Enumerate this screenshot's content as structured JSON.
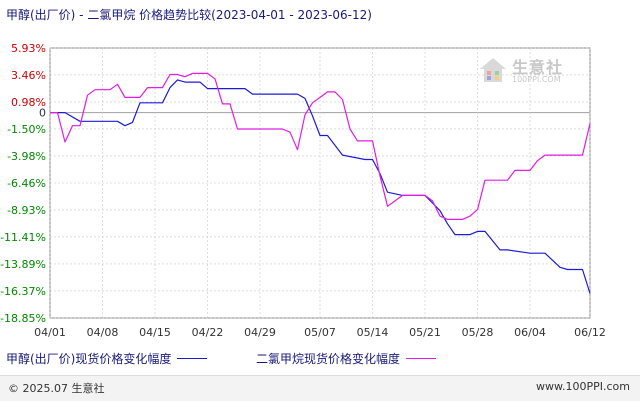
{
  "title": "甲醇(出厂价) - 二氯甲烷 价格趋势比较(2023-04-01 - 2023-06-12)",
  "watermark": {
    "name": "生意社",
    "url": "100PPI.COM"
  },
  "legend": {
    "series1": "甲醇(出厂价)现货价格变化幅度",
    "series2": "二氯甲烷现货价格变化幅度"
  },
  "footer": {
    "left": "© 2025.07 生意社",
    "right": "www.100PPI.com"
  },
  "colors": {
    "series1": "#1c1cd6",
    "series2": "#e01ee0",
    "tick_red": "#cc0000",
    "tick_green": "#008800",
    "grid": "#c8c8c8",
    "zero_line": "#a0a0a0"
  },
  "chart_data": {
    "type": "line",
    "ylim": [
      -18.85,
      5.93
    ],
    "y_ticks": [
      "5.93%",
      "3.46%",
      "0.98%",
      "0",
      "-1.50%",
      "-3.98%",
      "-6.46%",
      "-8.93%",
      "-11.41%",
      "-13.89%",
      "-16.37%",
      "-18.85%"
    ],
    "y_tick_values": [
      5.93,
      3.46,
      0.98,
      0,
      -1.5,
      -3.98,
      -6.46,
      -8.93,
      -11.41,
      -13.89,
      -16.37,
      -18.85
    ],
    "x_ticks": [
      "04/01",
      "04/08",
      "04/15",
      "04/22",
      "04/29",
      "05/07",
      "05/14",
      "05/21",
      "05/28",
      "06/04",
      "06/12"
    ],
    "series": [
      {
        "name": "甲醇(出厂价)现货价格变化幅度",
        "points": [
          [
            "04/01",
            0
          ],
          [
            "04/03",
            0
          ],
          [
            "04/05",
            -0.8
          ],
          [
            "04/08",
            -0.8
          ],
          [
            "04/10",
            -0.8
          ],
          [
            "04/11",
            -1.2
          ],
          [
            "04/12",
            -0.9
          ],
          [
            "04/13",
            0.9
          ],
          [
            "04/14",
            0.9
          ],
          [
            "04/16",
            0.9
          ],
          [
            "04/17",
            2.3
          ],
          [
            "04/18",
            3.0
          ],
          [
            "04/19",
            2.8
          ],
          [
            "04/21",
            2.8
          ],
          [
            "04/22",
            2.2
          ],
          [
            "04/24",
            2.2
          ],
          [
            "04/27",
            2.2
          ],
          [
            "04/28",
            1.7
          ],
          [
            "05/04",
            1.7
          ],
          [
            "05/05",
            1.3
          ],
          [
            "05/06",
            -0.3
          ],
          [
            "05/07",
            -2.1
          ],
          [
            "05/08",
            -2.1
          ],
          [
            "05/10",
            -3.9
          ],
          [
            "05/13",
            -4.3
          ],
          [
            "05/14",
            -4.3
          ],
          [
            "05/15",
            -5.6
          ],
          [
            "05/16",
            -7.3
          ],
          [
            "05/18",
            -7.6
          ],
          [
            "05/21",
            -7.6
          ],
          [
            "05/22",
            -8.3
          ],
          [
            "05/23",
            -9.0
          ],
          [
            "05/24",
            -10.2
          ],
          [
            "05/25",
            -11.2
          ],
          [
            "05/27",
            -11.2
          ],
          [
            "05/28",
            -10.9
          ],
          [
            "05/29",
            -10.9
          ],
          [
            "05/31",
            -12.6
          ],
          [
            "06/01",
            -12.6
          ],
          [
            "06/04",
            -12.9
          ],
          [
            "06/05",
            -12.9
          ],
          [
            "06/06",
            -12.9
          ],
          [
            "06/08",
            -14.2
          ],
          [
            "06/09",
            -14.4
          ],
          [
            "06/11",
            -14.4
          ],
          [
            "06/12",
            -16.6
          ]
        ]
      },
      {
        "name": "二氯甲烷现货价格变化幅度",
        "points": [
          [
            "04/01",
            0
          ],
          [
            "04/02",
            0
          ],
          [
            "04/03",
            -2.7
          ],
          [
            "04/04",
            -1.2
          ],
          [
            "04/05",
            -1.2
          ],
          [
            "04/06",
            1.6
          ],
          [
            "04/07",
            2.1
          ],
          [
            "04/08",
            2.1
          ],
          [
            "04/09",
            2.1
          ],
          [
            "04/10",
            2.6
          ],
          [
            "04/11",
            1.4
          ],
          [
            "04/12",
            1.4
          ],
          [
            "04/13",
            1.4
          ],
          [
            "04/14",
            2.3
          ],
          [
            "04/16",
            2.3
          ],
          [
            "04/17",
            3.5
          ],
          [
            "04/18",
            3.5
          ],
          [
            "04/19",
            3.3
          ],
          [
            "04/20",
            3.6
          ],
          [
            "04/22",
            3.6
          ],
          [
            "04/23",
            3.1
          ],
          [
            "04/24",
            0.8
          ],
          [
            "04/25",
            0.8
          ],
          [
            "04/26",
            -1.5
          ],
          [
            "04/29",
            -1.5
          ],
          [
            "05/01",
            -1.5
          ],
          [
            "05/02",
            -1.5
          ],
          [
            "05/03",
            -1.8
          ],
          [
            "05/04",
            -3.4
          ],
          [
            "05/05",
            -0.2
          ],
          [
            "05/06",
            0.9
          ],
          [
            "05/07",
            1.4
          ],
          [
            "05/08",
            1.9
          ],
          [
            "05/09",
            1.9
          ],
          [
            "05/10",
            1.2
          ],
          [
            "05/11",
            -1.5
          ],
          [
            "05/12",
            -2.6
          ],
          [
            "05/13",
            -2.6
          ],
          [
            "05/14",
            -2.6
          ],
          [
            "05/15",
            -5.8
          ],
          [
            "05/16",
            -8.6
          ],
          [
            "05/17",
            -8.1
          ],
          [
            "05/18",
            -7.6
          ],
          [
            "05/20",
            -7.6
          ],
          [
            "05/21",
            -7.6
          ],
          [
            "05/22",
            -8.1
          ],
          [
            "05/23",
            -9.5
          ],
          [
            "05/24",
            -9.8
          ],
          [
            "05/26",
            -9.8
          ],
          [
            "05/27",
            -9.5
          ],
          [
            "05/28",
            -8.9
          ],
          [
            "05/29",
            -6.2
          ],
          [
            "05/30",
            -6.2
          ],
          [
            "06/01",
            -6.2
          ],
          [
            "06/02",
            -5.3
          ],
          [
            "06/03",
            -5.3
          ],
          [
            "06/04",
            -5.3
          ],
          [
            "06/05",
            -4.4
          ],
          [
            "06/06",
            -3.9
          ],
          [
            "06/07",
            -3.9
          ],
          [
            "06/11",
            -3.9
          ],
          [
            "06/12",
            -1.0
          ]
        ]
      }
    ]
  }
}
